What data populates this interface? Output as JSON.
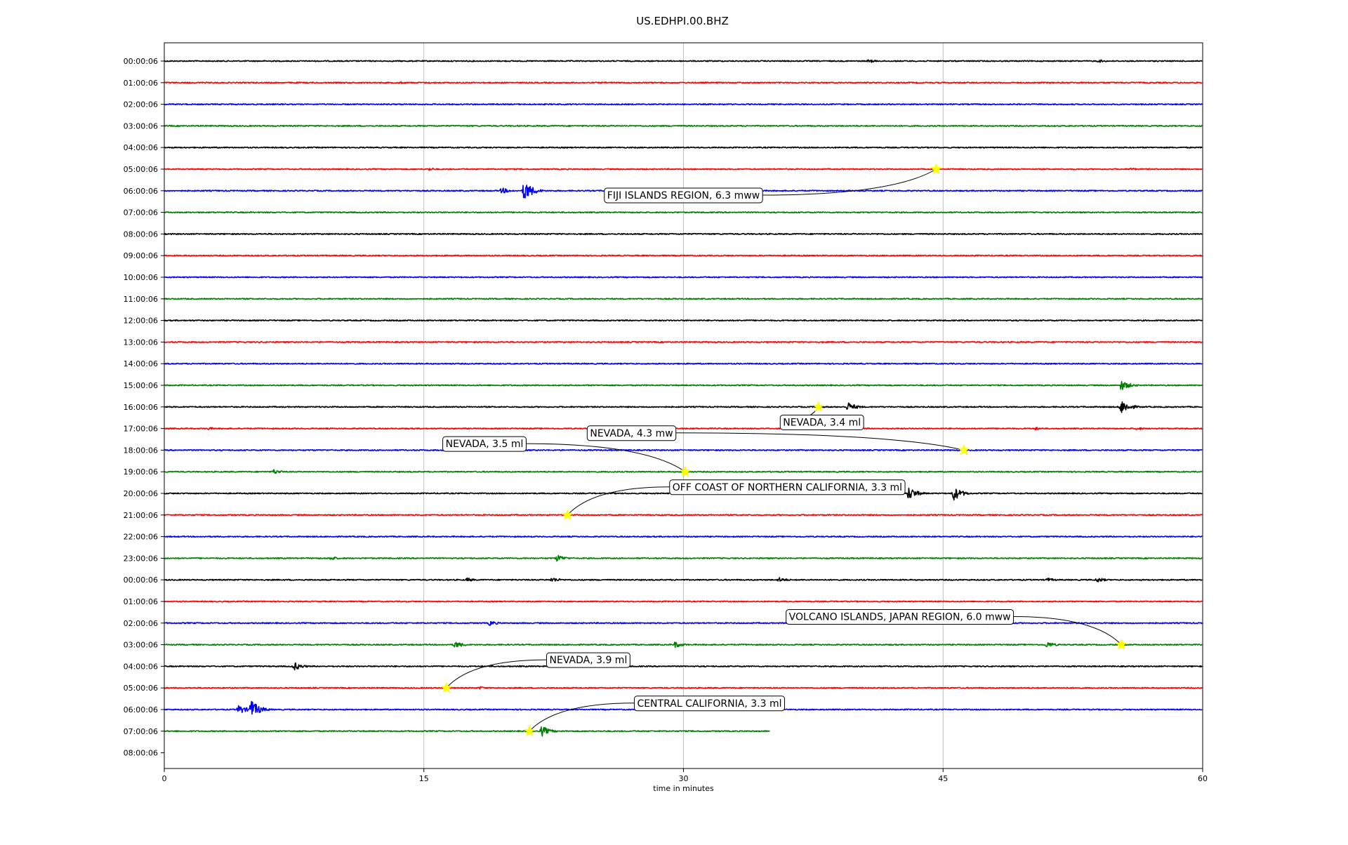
{
  "chart_data": {
    "type": "line",
    "title": "US.EDHPI.00.BHZ",
    "xlabel": "time in minutes",
    "ylabel": "",
    "xlim": [
      0,
      60
    ],
    "x_ticks": [
      "0",
      "15",
      "30",
      "45",
      "60"
    ],
    "x_tick_values": [
      0,
      15,
      30,
      45,
      60
    ],
    "grid": "vertical",
    "colors": [
      "#000000",
      "#ff0000",
      "#0000ff",
      "#008000"
    ],
    "rows": [
      "00:00:06",
      "01:00:06",
      "02:00:06",
      "03:00:06",
      "04:00:06",
      "05:00:06",
      "06:00:06",
      "07:00:06",
      "08:00:06",
      "09:00:06",
      "10:00:06",
      "11:00:06",
      "12:00:06",
      "13:00:06",
      "14:00:06",
      "15:00:06",
      "16:00:06",
      "17:00:06",
      "18:00:06",
      "19:00:06",
      "20:00:06",
      "21:00:06",
      "22:00:06",
      "23:00:06",
      "00:00:06",
      "01:00:06",
      "02:00:06",
      "03:00:06",
      "04:00:06",
      "05:00:06",
      "06:00:06",
      "07:00:06",
      "08:00:06"
    ],
    "last_row_end_minute": 35,
    "bursts": [
      {
        "row": 0,
        "minute": 40.7,
        "amp": 0.35
      },
      {
        "row": 0,
        "minute": 54.0,
        "amp": 0.3
      },
      {
        "row": 1,
        "minute": 13.6,
        "amp": 0.25
      },
      {
        "row": 5,
        "minute": 15.3,
        "amp": 0.3
      },
      {
        "row": 5,
        "minute": 55.8,
        "amp": 0.3
      },
      {
        "row": 6,
        "minute": 19.5,
        "amp": 0.6
      },
      {
        "row": 6,
        "minute": 20.8,
        "amp": 2.0
      },
      {
        "row": 15,
        "minute": 55.3,
        "amp": 1.0
      },
      {
        "row": 16,
        "minute": 39.5,
        "amp": 0.9
      },
      {
        "row": 16,
        "minute": 55.3,
        "amp": 1.4
      },
      {
        "row": 17,
        "minute": 2.5,
        "amp": 0.3
      },
      {
        "row": 17,
        "minute": 50.3,
        "amp": 0.3
      },
      {
        "row": 17,
        "minute": 56.2,
        "amp": 0.3
      },
      {
        "row": 19,
        "minute": 6.3,
        "amp": 0.5
      },
      {
        "row": 20,
        "minute": 43.0,
        "amp": 1.3
      },
      {
        "row": 20,
        "minute": 45.6,
        "amp": 1.4
      },
      {
        "row": 23,
        "minute": 9.6,
        "amp": 0.4
      },
      {
        "row": 23,
        "minute": 22.7,
        "amp": 0.7
      },
      {
        "row": 24,
        "minute": 17.5,
        "amp": 0.4
      },
      {
        "row": 24,
        "minute": 22.4,
        "amp": 0.5
      },
      {
        "row": 24,
        "minute": 35.5,
        "amp": 0.5
      },
      {
        "row": 24,
        "minute": 51.0,
        "amp": 0.4
      },
      {
        "row": 24,
        "minute": 53.9,
        "amp": 0.5
      },
      {
        "row": 26,
        "minute": 18.8,
        "amp": 0.5
      },
      {
        "row": 26,
        "minute": 47.5,
        "amp": 0.4
      },
      {
        "row": 27,
        "minute": 16.8,
        "amp": 0.7
      },
      {
        "row": 27,
        "minute": 29.5,
        "amp": 0.6
      },
      {
        "row": 27,
        "minute": 51.0,
        "amp": 0.6
      },
      {
        "row": 28,
        "minute": 7.5,
        "amp": 0.8
      },
      {
        "row": 29,
        "minute": 18.2,
        "amp": 0.3
      },
      {
        "row": 30,
        "minute": 4.3,
        "amp": 0.9
      },
      {
        "row": 30,
        "minute": 5.0,
        "amp": 1.9
      },
      {
        "row": 31,
        "minute": 21.8,
        "amp": 1.0
      }
    ],
    "events": [
      {
        "label": "FIJI ISLANDS REGION, 6.3 mww",
        "row": 5,
        "minute": 44.6,
        "label_row": 6.2,
        "label_minute": 30.0
      },
      {
        "label": "NEVADA, 3.4 ml",
        "row": 16,
        "minute": 37.8,
        "label_row": 16.7,
        "label_minute": 38.0
      },
      {
        "label": "NEVADA, 4.3 mw",
        "row": 18,
        "minute": 46.2,
        "label_row": 17.2,
        "label_minute": 27.0
      },
      {
        "label": "NEVADA, 3.5 ml",
        "row": 19,
        "minute": 30.1,
        "label_row": 17.7,
        "label_minute": 18.5
      },
      {
        "label": "OFF COAST OF NORTHERN CALIFORNIA, 3.3 ml",
        "row": 21,
        "minute": 23.3,
        "label_row": 19.7,
        "label_minute": 36.0
      },
      {
        "label": "VOLCANO ISLANDS, JAPAN REGION, 6.0 mww",
        "row": 27,
        "minute": 55.3,
        "label_row": 25.7,
        "label_minute": 42.5
      },
      {
        "label": "NEVADA, 3.9 ml",
        "row": 29,
        "minute": 16.3,
        "label_row": 27.7,
        "label_minute": 24.5
      },
      {
        "label": "CENTRAL CALIFORNIA, 3.3 ml",
        "row": 31,
        "minute": 21.1,
        "label_row": 29.7,
        "label_minute": 31.5
      }
    ]
  }
}
